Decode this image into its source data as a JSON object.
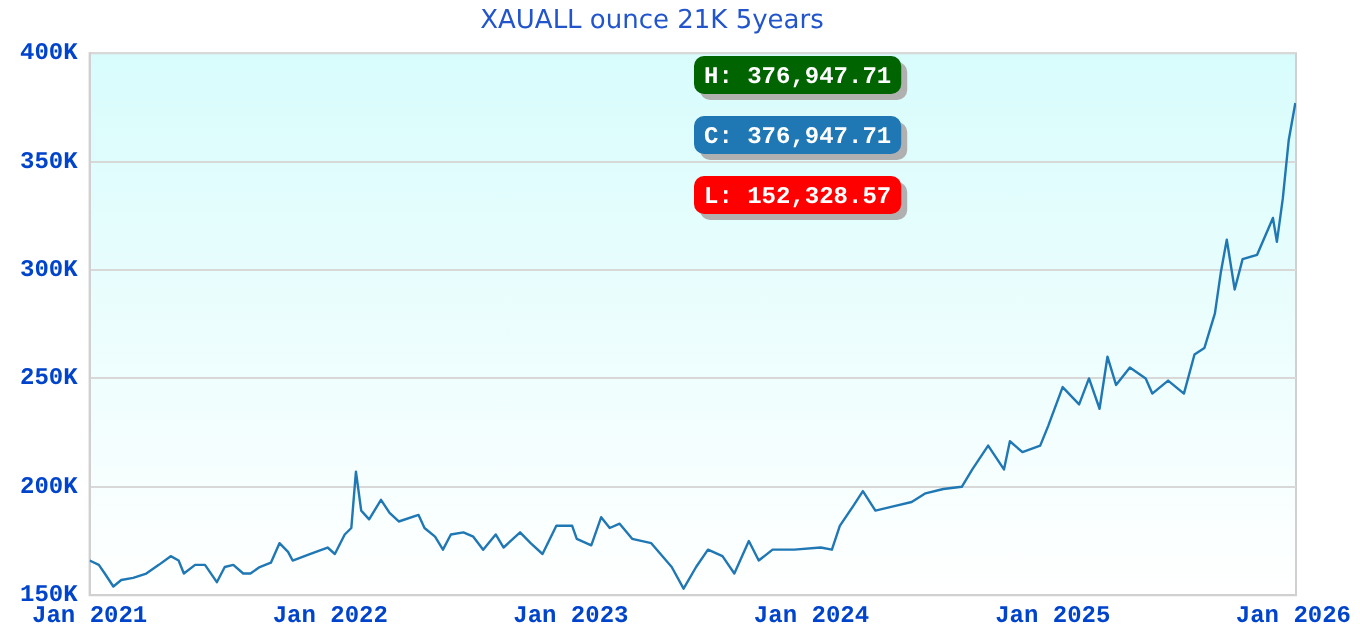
{
  "chart_data": {
    "type": "line",
    "title": "XAUALL ounce 21K 5years",
    "annotations": [
      "H: 376,947.71",
      "C: 376,947.71",
      "L: 152,328.57"
    ],
    "x": [
      "2021-01-01",
      "2021-01-15",
      "2021-01-24",
      "2021-02-06",
      "2021-02-18",
      "2021-03-08",
      "2021-03-28",
      "2021-04-16",
      "2021-05-04",
      "2021-05-16",
      "2021-05-24",
      "2021-06-10",
      "2021-06-25",
      "2021-07-13",
      "2021-07-25",
      "2021-08-07",
      "2021-08-22",
      "2021-09-02",
      "2021-09-16",
      "2021-10-03",
      "2021-10-16",
      "2021-10-29",
      "2021-11-05",
      "2021-12-01",
      "2021-12-28",
      "2022-01-08",
      "2022-01-23",
      "2022-02-02",
      "2022-02-09",
      "2022-02-17",
      "2022-03-01",
      "2022-03-19",
      "2022-04-01",
      "2022-04-15",
      "2022-05-15",
      "2022-05-24",
      "2022-06-09",
      "2022-06-21",
      "2022-07-03",
      "2022-07-22",
      "2022-08-06",
      "2022-08-21",
      "2022-09-09",
      "2022-09-21",
      "2022-10-16",
      "2022-11-01",
      "2022-11-19",
      "2022-12-10",
      "2023-01-03",
      "2023-01-10",
      "2023-02-01",
      "2023-02-16",
      "2023-03-01",
      "2023-03-16",
      "2023-04-04",
      "2023-05-03",
      "2023-06-03",
      "2023-06-21",
      "2023-07-10",
      "2023-07-28",
      "2023-08-19",
      "2023-09-06",
      "2023-09-28",
      "2023-10-13",
      "2023-11-03",
      "2023-12-06",
      "2024-01-15",
      "2024-02-01",
      "2024-02-13",
      "2024-03-04",
      "2024-03-19",
      "2024-04-07",
      "2024-05-04",
      "2024-06-01",
      "2024-06-22",
      "2024-07-19",
      "2024-08-16",
      "2024-09-01",
      "2024-09-25",
      "2024-10-19",
      "2024-10-28",
      "2024-11-16",
      "2024-12-13",
      "2024-12-25",
      "2025-01-16",
      "2025-02-10",
      "2025-02-25",
      "2025-03-13",
      "2025-03-25",
      "2025-04-07",
      "2025-04-28",
      "2025-05-22",
      "2025-06-01",
      "2025-06-25",
      "2025-07-19",
      "2025-08-04",
      "2025-08-19",
      "2025-09-04",
      "2025-09-13",
      "2025-09-22",
      "2025-10-04",
      "2025-10-16",
      "2025-11-07",
      "2025-12-01",
      "2025-12-07",
      "2025-12-16",
      "2025-12-25",
      "2026-01-04"
    ],
    "series": [
      {
        "color": "#1f77b4",
        "values": [
          166000,
          164000,
          160000,
          154000,
          157000,
          158000,
          160000,
          164000,
          168000,
          166000,
          160000,
          164000,
          164000,
          156000,
          163000,
          164000,
          160000,
          160000,
          163000,
          165000,
          174000,
          170000,
          166000,
          169000,
          172000,
          169000,
          178000,
          181000,
          207000,
          189000,
          185000,
          194000,
          188000,
          184000,
          187000,
          181000,
          177000,
          171000,
          178000,
          179000,
          177000,
          171000,
          178000,
          172000,
          179000,
          174000,
          169000,
          182000,
          182000,
          176000,
          173000,
          186000,
          181000,
          183000,
          176000,
          174000,
          163000,
          153000,
          163000,
          171000,
          168000,
          160000,
          175000,
          166000,
          171000,
          171000,
          172000,
          171000,
          182000,
          191000,
          198000,
          189000,
          191000,
          193000,
          197000,
          199000,
          200000,
          208000,
          219000,
          208000,
          221000,
          216000,
          219000,
          228000,
          246000,
          238000,
          250000,
          236000,
          260000,
          247000,
          255000,
          250000,
          243000,
          249000,
          243000,
          261000,
          264000,
          280000,
          299000,
          314000,
          291000,
          305000,
          307000,
          324000,
          313000,
          333000,
          360000,
          377000
        ]
      }
    ],
    "xlim": [
      "2021-01-01",
      "2026-01-05"
    ],
    "xticks": [
      {
        "value": "2021-01-01",
        "label": "Jan 2021"
      },
      {
        "value": "2022-01-01",
        "label": "Jan 2022"
      },
      {
        "value": "2023-01-01",
        "label": "Jan 2023"
      },
      {
        "value": "2024-01-01",
        "label": "Jan 2024"
      },
      {
        "value": "2025-01-01",
        "label": "Jan 2025"
      },
      {
        "value": "2026-01-01",
        "label": "Jan 2026"
      }
    ],
    "ylim": [
      150000,
      400000
    ],
    "yticks": [
      {
        "value": 150000,
        "label": "150K"
      },
      {
        "value": 200000,
        "label": "200K"
      },
      {
        "value": 250000,
        "label": "250K"
      },
      {
        "value": 300000,
        "label": "300K"
      },
      {
        "value": 350000,
        "label": "350K"
      },
      {
        "value": 400000,
        "label": "400K"
      }
    ],
    "grid": "y",
    "legend": false,
    "marker": "none",
    "line_style": "solid"
  }
}
